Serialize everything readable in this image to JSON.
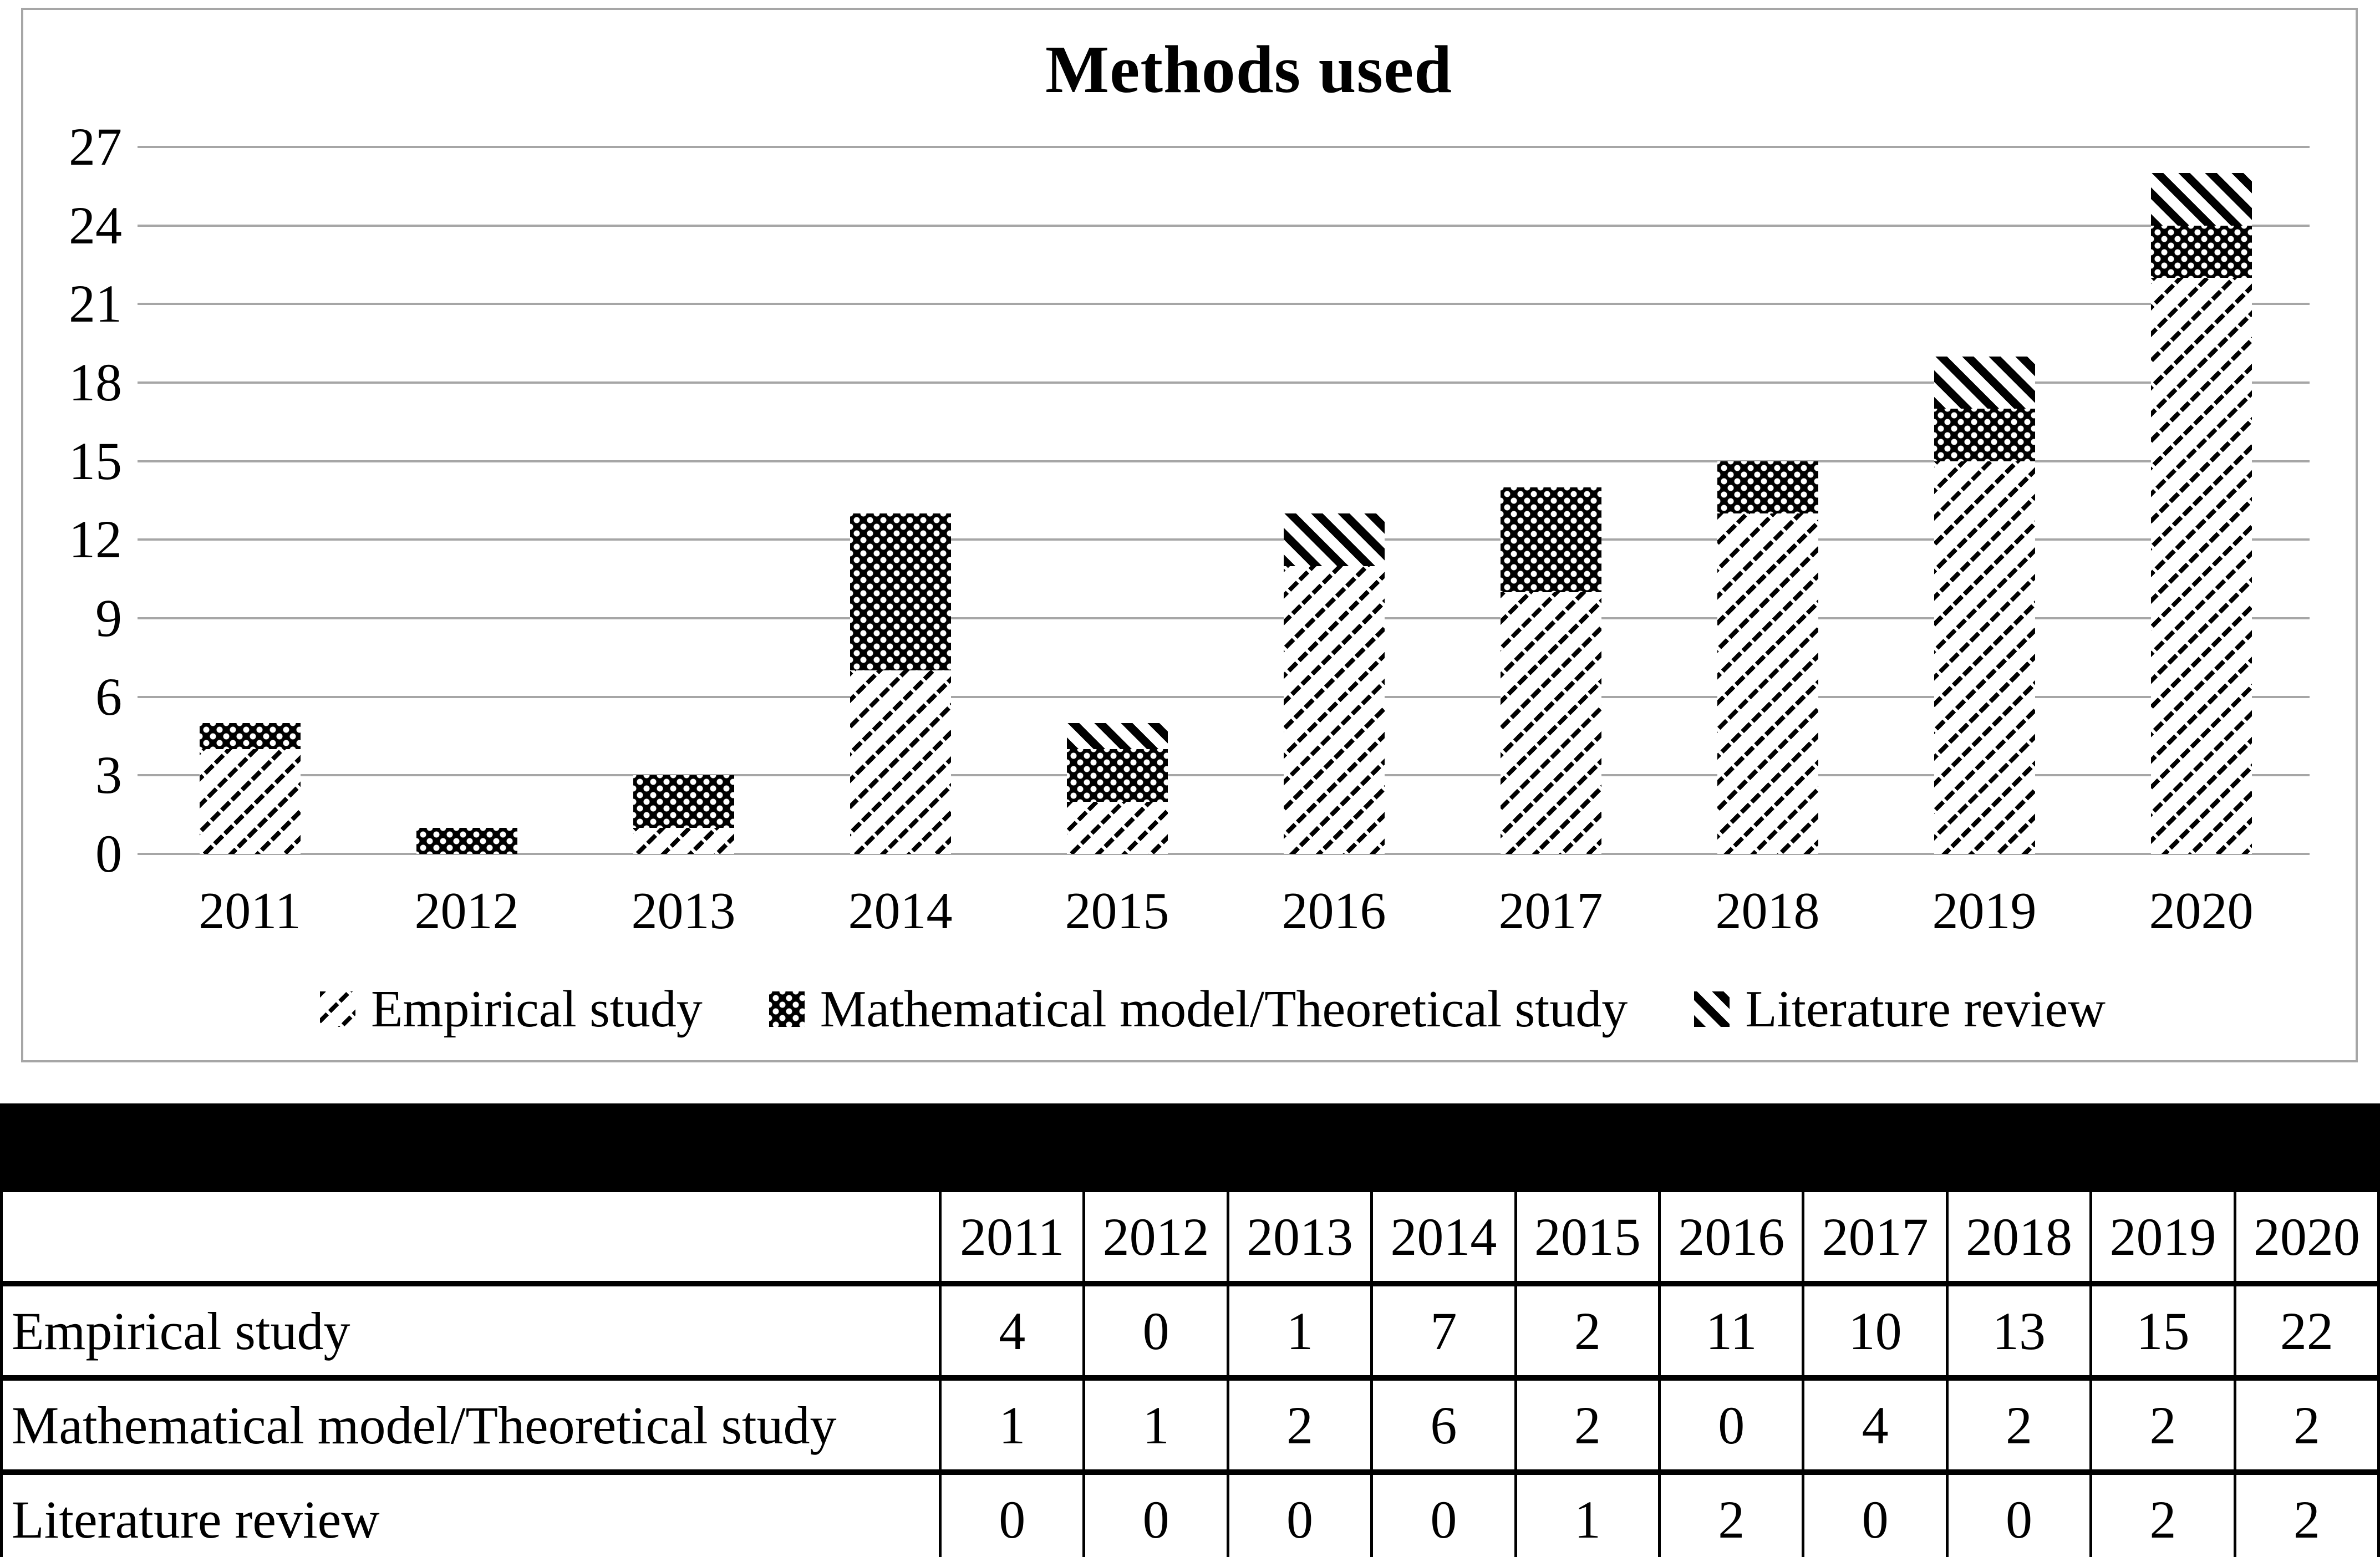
{
  "chart_data": {
    "type": "bar",
    "stacked": true,
    "title": "Methods used",
    "categories": [
      "2011",
      "2012",
      "2013",
      "2014",
      "2015",
      "2016",
      "2017",
      "2018",
      "2019",
      "2020"
    ],
    "series": [
      {
        "name": "Empirical study",
        "pattern": "diagonal-up-hatch",
        "values": [
          4,
          0,
          1,
          7,
          2,
          11,
          10,
          13,
          15,
          22
        ]
      },
      {
        "name": "Mathematical model/Theoretical study",
        "pattern": "black-white-dots",
        "values": [
          1,
          1,
          2,
          6,
          2,
          0,
          4,
          2,
          2,
          2
        ]
      },
      {
        "name": "Literature review",
        "pattern": "diagonal-down-stripes",
        "values": [
          0,
          0,
          0,
          0,
          1,
          2,
          0,
          0,
          2,
          2
        ]
      }
    ],
    "xlabel": "",
    "ylabel": "",
    "ylim": [
      0,
      27
    ],
    "ytick_step": 3,
    "yticks": [
      "0",
      "3",
      "6",
      "9",
      "12",
      "15",
      "18",
      "21",
      "24",
      "27"
    ],
    "grid": true,
    "legend_position": "bottom"
  },
  "table": {
    "columns": [
      "2011",
      "2012",
      "2013",
      "2014",
      "2015",
      "2016",
      "2017",
      "2018",
      "2019",
      "2020"
    ],
    "rows": [
      {
        "label": "Empirical study",
        "values": [
          4,
          0,
          1,
          7,
          2,
          11,
          10,
          13,
          15,
          22
        ]
      },
      {
        "label": "Mathematical model/Theoretical study",
        "values": [
          1,
          1,
          2,
          6,
          2,
          0,
          4,
          2,
          2,
          2
        ]
      },
      {
        "label": "Literature review",
        "values": [
          0,
          0,
          0,
          0,
          1,
          2,
          0,
          0,
          2,
          2
        ]
      }
    ]
  },
  "colors": {
    "grid": "#a6a6a6",
    "frame": "#a6a6a6",
    "text": "#000000",
    "fill_dark": "#000000",
    "background": "#ffffff"
  }
}
